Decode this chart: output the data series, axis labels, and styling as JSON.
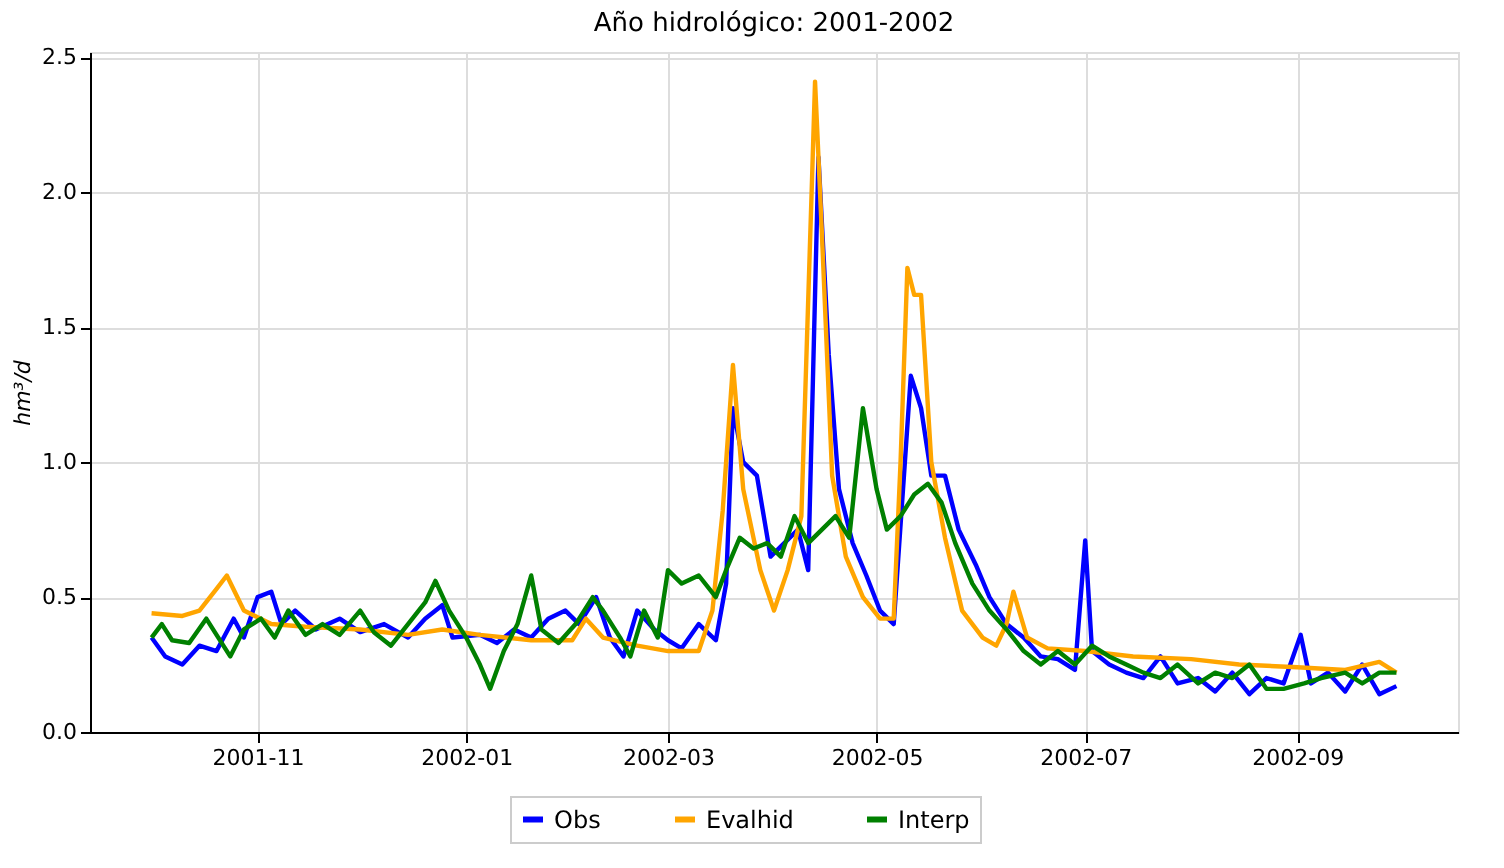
{
  "chart_data": {
    "type": "line",
    "title": "Año hidrológico: 2001-2002",
    "ylabel": "hm³/d",
    "xlim": [
      "2001-09-13",
      "2002-10-18"
    ],
    "ylim": [
      0,
      2.52
    ],
    "xticks": [
      "2001-11",
      "2002-01",
      "2002-03",
      "2002-05",
      "2002-07",
      "2002-09"
    ],
    "yticks": [
      {
        "value": 0,
        "label": "0.0"
      },
      {
        "value": 0.5,
        "label": "0.5"
      },
      {
        "value": 1,
        "label": "1.0"
      },
      {
        "value": 1.5,
        "label": "1.5"
      },
      {
        "value": 2,
        "label": "2.0"
      },
      {
        "value": 2.5,
        "label": "2.5"
      }
    ],
    "grid": true,
    "legend": "bottom",
    "line_style": "solid",
    "marker": "none",
    "series": [
      {
        "name": "Obs",
        "color": "#0000ff",
        "x": [
          "2001-10-01",
          "2001-10-05",
          "2001-10-10",
          "2001-10-15",
          "2001-10-20",
          "2001-10-25",
          "2001-10-28",
          "2001-11-01",
          "2001-11-05",
          "2001-11-08",
          "2001-11-12",
          "2001-11-18",
          "2001-11-25",
          "2001-12-01",
          "2001-12-08",
          "2001-12-15",
          "2001-12-20",
          "2001-12-25",
          "2001-12-28",
          "2002-01-05",
          "2002-01-10",
          "2002-01-15",
          "2002-01-20",
          "2002-01-25",
          "2002-01-30",
          "2002-02-03",
          "2002-02-08",
          "2002-02-12",
          "2002-02-16",
          "2002-02-20",
          "2002-02-25",
          "2002-03-01",
          "2002-03-05",
          "2002-03-10",
          "2002-03-15",
          "2002-03-18",
          "2002-03-20",
          "2002-03-23",
          "2002-03-27",
          "2002-03-31",
          "2002-04-04",
          "2002-04-08",
          "2002-04-11",
          "2002-04-14",
          "2002-04-17",
          "2002-04-20",
          "2002-04-24",
          "2002-04-28",
          "2002-05-02",
          "2002-05-06",
          "2002-05-09",
          "2002-05-11",
          "2002-05-14",
          "2002-05-17",
          "2002-05-21",
          "2002-05-25",
          "2002-05-30",
          "2002-06-03",
          "2002-06-08",
          "2002-06-13",
          "2002-06-18",
          "2002-06-23",
          "2002-06-28",
          "2002-07-01",
          "2002-07-03",
          "2002-07-08",
          "2002-07-13",
          "2002-07-18",
          "2002-07-23",
          "2002-07-28",
          "2002-08-03",
          "2002-08-08",
          "2002-08-13",
          "2002-08-18",
          "2002-08-23",
          "2002-08-28",
          "2002-09-02",
          "2002-09-05",
          "2002-09-10",
          "2002-09-15",
          "2002-09-20",
          "2002-09-25",
          "2002-09-30"
        ],
        "values": [
          0.35,
          0.28,
          0.25,
          0.32,
          0.3,
          0.42,
          0.35,
          0.5,
          0.52,
          0.4,
          0.45,
          0.38,
          0.42,
          0.37,
          0.4,
          0.35,
          0.42,
          0.47,
          0.35,
          0.36,
          0.33,
          0.38,
          0.35,
          0.42,
          0.45,
          0.4,
          0.5,
          0.35,
          0.28,
          0.45,
          0.38,
          0.34,
          0.31,
          0.4,
          0.34,
          0.55,
          1.2,
          1.0,
          0.95,
          0.65,
          0.7,
          0.75,
          0.6,
          2.13,
          1.4,
          0.9,
          0.7,
          0.58,
          0.45,
          0.4,
          0.95,
          1.32,
          1.2,
          0.95,
          0.95,
          0.75,
          0.62,
          0.5,
          0.4,
          0.35,
          0.28,
          0.27,
          0.23,
          0.71,
          0.3,
          0.25,
          0.22,
          0.2,
          0.28,
          0.18,
          0.2,
          0.15,
          0.22,
          0.14,
          0.2,
          0.18,
          0.36,
          0.18,
          0.22,
          0.15,
          0.25,
          0.14,
          0.17
        ]
      },
      {
        "name": "Evalhid",
        "color": "#ffa500",
        "x": [
          "2001-10-01",
          "2001-10-10",
          "2001-10-15",
          "2001-10-20",
          "2001-10-23",
          "2001-10-28",
          "2001-11-05",
          "2001-11-15",
          "2001-12-01",
          "2001-12-15",
          "2001-12-25",
          "2002-01-05",
          "2002-01-20",
          "2002-02-01",
          "2002-02-05",
          "2002-02-10",
          "2002-02-20",
          "2002-03-01",
          "2002-03-10",
          "2002-03-14",
          "2002-03-17",
          "2002-03-20",
          "2002-03-23",
          "2002-03-28",
          "2002-04-01",
          "2002-04-05",
          "2002-04-09",
          "2002-04-12",
          "2002-04-13",
          "2002-04-15",
          "2002-04-18",
          "2002-04-22",
          "2002-04-27",
          "2002-05-02",
          "2002-05-06",
          "2002-05-08",
          "2002-05-10",
          "2002-05-12",
          "2002-05-14",
          "2002-05-17",
          "2002-05-21",
          "2002-05-26",
          "2002-06-01",
          "2002-06-05",
          "2002-06-08",
          "2002-06-10",
          "2002-06-14",
          "2002-06-20",
          "2002-07-01",
          "2002-07-15",
          "2002-08-01",
          "2002-08-15",
          "2002-09-01",
          "2002-09-15",
          "2002-09-25",
          "2002-09-30"
        ],
        "values": [
          0.44,
          0.43,
          0.45,
          0.53,
          0.58,
          0.45,
          0.4,
          0.39,
          0.38,
          0.36,
          0.38,
          0.36,
          0.34,
          0.34,
          0.42,
          0.35,
          0.32,
          0.3,
          0.3,
          0.45,
          0.82,
          1.36,
          0.9,
          0.6,
          0.45,
          0.6,
          0.8,
          2.0,
          2.41,
          1.85,
          0.95,
          0.65,
          0.5,
          0.42,
          0.42,
          1.0,
          1.72,
          1.62,
          1.62,
          1.0,
          0.72,
          0.45,
          0.35,
          0.32,
          0.4,
          0.52,
          0.35,
          0.31,
          0.3,
          0.28,
          0.27,
          0.25,
          0.24,
          0.23,
          0.26,
          0.22
        ]
      },
      {
        "name": "Interp",
        "color": "#008000",
        "x": [
          "2001-10-01",
          "2001-10-04",
          "2001-10-07",
          "2001-10-12",
          "2001-10-17",
          "2001-10-20",
          "2001-10-24",
          "2001-10-28",
          "2001-11-02",
          "2001-11-06",
          "2001-11-10",
          "2001-11-15",
          "2001-11-20",
          "2001-11-25",
          "2001-12-01",
          "2001-12-05",
          "2001-12-10",
          "2001-12-15",
          "2001-12-20",
          "2001-12-23",
          "2001-12-27",
          "2002-01-01",
          "2002-01-05",
          "2002-01-08",
          "2002-01-12",
          "2002-01-16",
          "2002-01-20",
          "2002-01-23",
          "2002-01-28",
          "2002-02-02",
          "2002-02-07",
          "2002-02-10",
          "2002-02-15",
          "2002-02-18",
          "2002-02-22",
          "2002-02-26",
          "2002-03-01",
          "2002-03-05",
          "2002-03-10",
          "2002-03-15",
          "2002-03-18",
          "2002-03-22",
          "2002-03-26",
          "2002-03-30",
          "2002-04-03",
          "2002-04-07",
          "2002-04-11",
          "2002-04-15",
          "2002-04-19",
          "2002-04-23",
          "2002-04-27",
          "2002-05-01",
          "2002-05-04",
          "2002-05-08",
          "2002-05-12",
          "2002-05-16",
          "2002-05-20",
          "2002-05-24",
          "2002-05-29",
          "2002-06-03",
          "2002-06-08",
          "2002-06-13",
          "2002-06-18",
          "2002-06-23",
          "2002-06-28",
          "2002-07-03",
          "2002-07-08",
          "2002-07-13",
          "2002-07-18",
          "2002-07-23",
          "2002-07-28",
          "2002-08-03",
          "2002-08-08",
          "2002-08-13",
          "2002-08-18",
          "2002-08-23",
          "2002-08-28",
          "2002-09-03",
          "2002-09-08",
          "2002-09-15",
          "2002-09-20",
          "2002-09-25",
          "2002-09-30"
        ],
        "values": [
          0.35,
          0.4,
          0.34,
          0.33,
          0.42,
          0.36,
          0.28,
          0.38,
          0.42,
          0.35,
          0.45,
          0.36,
          0.4,
          0.36,
          0.45,
          0.37,
          0.32,
          0.4,
          0.48,
          0.56,
          0.45,
          0.35,
          0.25,
          0.16,
          0.3,
          0.4,
          0.58,
          0.38,
          0.33,
          0.4,
          0.5,
          0.45,
          0.35,
          0.28,
          0.45,
          0.35,
          0.6,
          0.55,
          0.58,
          0.5,
          0.6,
          0.72,
          0.68,
          0.7,
          0.65,
          0.8,
          0.7,
          0.75,
          0.8,
          0.72,
          1.2,
          0.9,
          0.75,
          0.8,
          0.88,
          0.92,
          0.85,
          0.7,
          0.55,
          0.45,
          0.38,
          0.3,
          0.25,
          0.3,
          0.25,
          0.32,
          0.28,
          0.25,
          0.22,
          0.2,
          0.25,
          0.18,
          0.22,
          0.2,
          0.25,
          0.16,
          0.16,
          0.18,
          0.2,
          0.22,
          0.18,
          0.22,
          0.22
        ]
      }
    ]
  }
}
